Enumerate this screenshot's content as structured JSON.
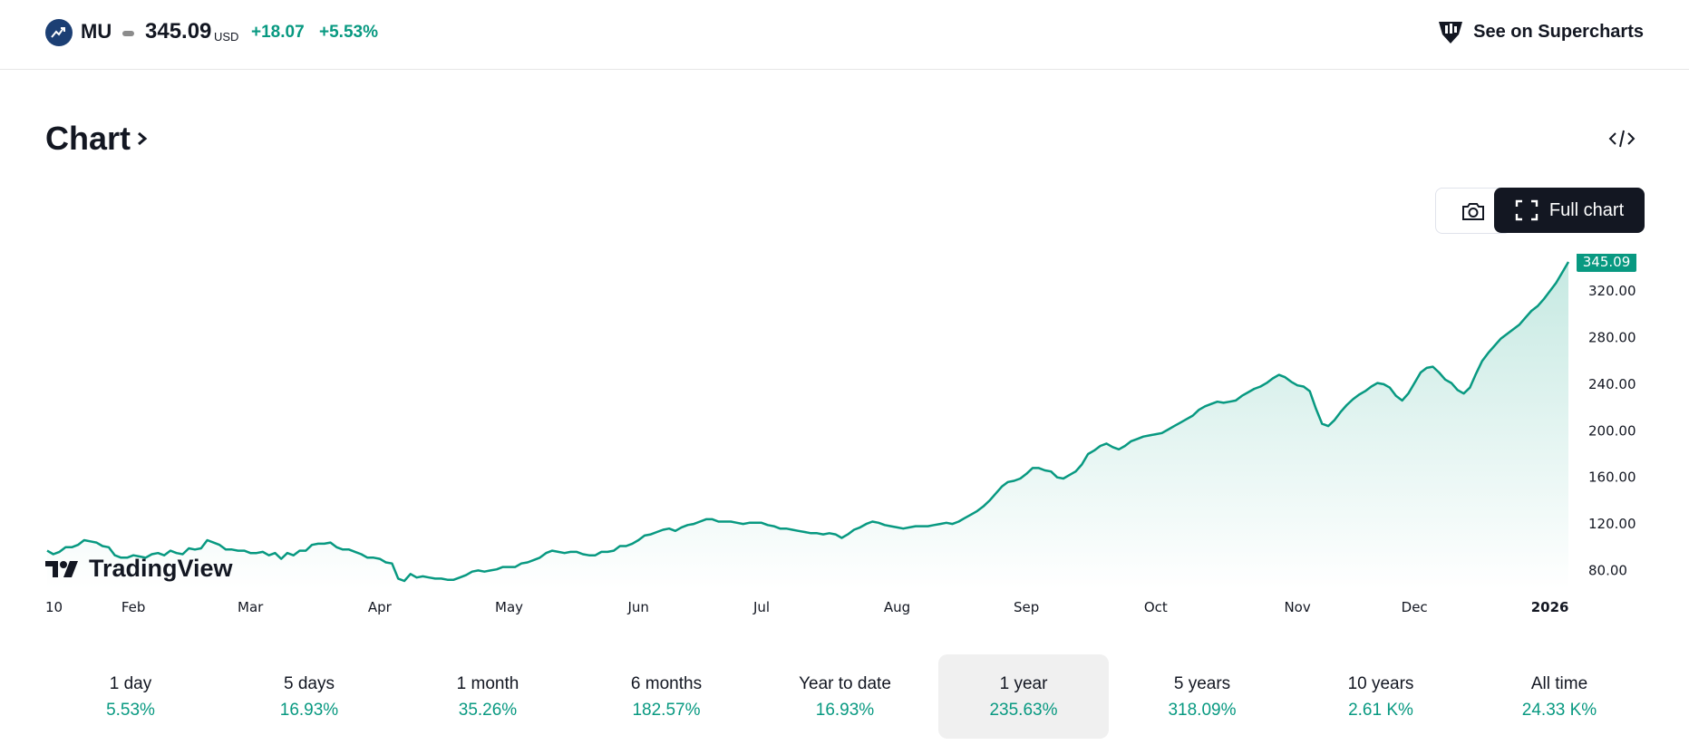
{
  "header": {
    "symbol": "MU",
    "price": "345.09",
    "currency": "USD",
    "change": "+18.07",
    "change_percent": "+5.53%",
    "supercharts_label": "See on Supercharts"
  },
  "section": {
    "title": "Chart"
  },
  "toolbar": {
    "full_chart_label": "Full chart"
  },
  "brand": {
    "logo_text": "TradingView"
  },
  "colors": {
    "accent": "#089981",
    "area_top": "#c6e9e2",
    "active_tab_bg": "#f0f0f0",
    "dark_button": "#131722"
  },
  "chart_data": {
    "type": "area",
    "title": "",
    "xlabel": "",
    "ylabel": "",
    "ylim": [
      64,
      352
    ],
    "y_ticks": [
      "80.00",
      "120.00",
      "160.00",
      "200.00",
      "240.00",
      "280.00",
      "320.00"
    ],
    "x_ticks": [
      {
        "label": "10",
        "i": 0
      },
      {
        "label": "Feb",
        "i": 14
      },
      {
        "label": "Mar",
        "i": 33
      },
      {
        "label": "Apr",
        "i": 54
      },
      {
        "label": "May",
        "i": 75
      },
      {
        "label": "Jun",
        "i": 96
      },
      {
        "label": "Jul",
        "i": 116
      },
      {
        "label": "Aug",
        "i": 138
      },
      {
        "label": "Sep",
        "i": 159
      },
      {
        "label": "Oct",
        "i": 180
      },
      {
        "label": "Nov",
        "i": 203
      },
      {
        "label": "Dec",
        "i": 222
      },
      {
        "label": "2026",
        "i": 244
      }
    ],
    "last_value_label": "345.09",
    "grid": false,
    "series": [
      {
        "values": [
          97,
          94,
          96,
          100,
          100,
          102,
          106,
          105,
          104,
          101,
          100,
          93,
          91,
          91,
          93,
          92,
          91,
          94,
          95,
          93,
          97,
          95,
          94,
          99,
          98,
          99,
          106,
          104,
          102,
          98,
          98,
          97,
          97,
          95,
          95,
          96,
          93,
          95,
          90,
          95,
          93,
          97,
          97,
          102,
          103,
          103,
          104,
          100,
          98,
          98,
          96,
          94,
          91,
          91,
          90,
          87,
          86,
          73,
          71,
          77,
          74,
          75,
          74,
          73,
          73,
          72,
          72,
          74,
          76,
          79,
          80,
          79,
          80,
          81,
          83,
          83,
          83,
          86,
          87,
          89,
          91,
          95,
          97,
          96,
          95,
          96,
          96,
          94,
          93,
          93,
          96,
          96,
          97,
          101,
          101,
          103,
          106,
          110,
          111,
          113,
          115,
          116,
          114,
          117,
          119,
          120,
          122,
          124,
          124,
          122,
          122,
          122,
          121,
          120,
          121,
          121,
          121,
          119,
          118,
          116,
          116,
          115,
          114,
          113,
          112,
          112,
          111,
          112,
          111,
          108,
          111,
          115,
          117,
          120,
          122,
          121,
          119,
          118,
          117,
          116,
          117,
          118,
          118,
          118,
          119,
          120,
          121,
          120,
          122,
          125,
          128,
          131,
          135,
          140,
          146,
          152,
          156,
          157,
          159,
          163,
          168,
          168,
          166,
          165,
          160,
          159,
          162,
          165,
          171,
          180,
          183,
          187,
          189,
          186,
          184,
          187,
          191,
          193,
          195,
          196,
          197,
          198,
          201,
          204,
          207,
          210,
          213,
          218,
          221,
          223,
          225,
          224,
          225,
          226,
          230,
          233,
          236,
          238,
          241,
          245,
          248,
          246,
          242,
          239,
          238,
          234,
          219,
          206,
          204,
          209,
          216,
          222,
          227,
          231,
          234,
          238,
          241,
          240,
          237,
          230,
          226,
          232,
          241,
          250,
          254,
          255,
          250,
          244,
          241,
          235,
          232,
          237,
          249,
          260,
          267,
          273,
          279,
          283,
          287,
          291,
          297,
          303,
          307,
          313,
          320,
          327,
          336,
          345
        ]
      }
    ]
  },
  "periods": [
    {
      "label": "1 day",
      "value": "5.53%",
      "active": false
    },
    {
      "label": "5 days",
      "value": "16.93%",
      "active": false
    },
    {
      "label": "1 month",
      "value": "35.26%",
      "active": false
    },
    {
      "label": "6 months",
      "value": "182.57%",
      "active": false
    },
    {
      "label": "Year to date",
      "value": "16.93%",
      "active": false
    },
    {
      "label": "1 year",
      "value": "235.63%",
      "active": true
    },
    {
      "label": "5 years",
      "value": "318.09%",
      "active": false
    },
    {
      "label": "10 years",
      "value": "2.61 K%",
      "active": false
    },
    {
      "label": "All time",
      "value": "24.33 K%",
      "active": false
    }
  ]
}
